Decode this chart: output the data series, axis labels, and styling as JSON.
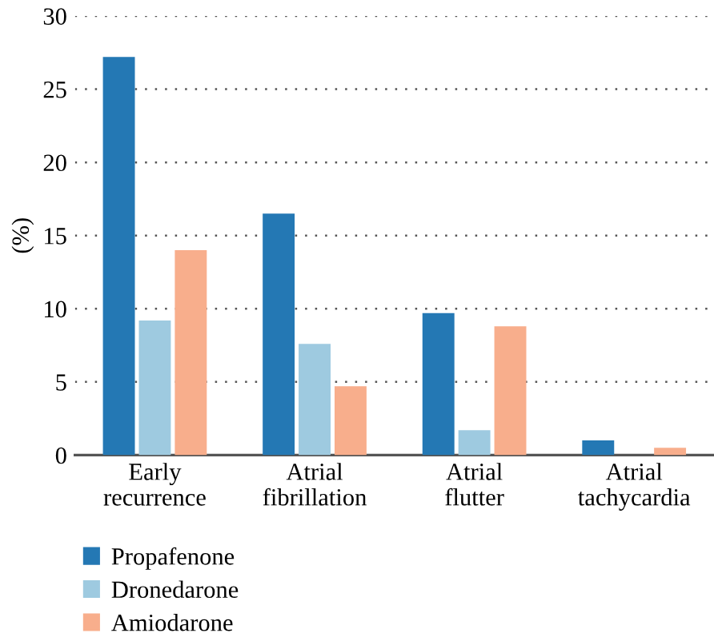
{
  "chart_data": {
    "type": "bar",
    "ylabel": "(%)",
    "categories": [
      "Early\nrecurrence",
      "Atrial\nfibrillation",
      "Atrial\nflutter",
      "Atrial\ntachycardia"
    ],
    "series": [
      {
        "name": "Propafenone",
        "color": "#2478b4",
        "values": [
          27.2,
          16.5,
          9.7,
          1.0
        ]
      },
      {
        "name": "Dronedarone",
        "color": "#9ecae0",
        "values": [
          9.2,
          7.6,
          1.7,
          0
        ]
      },
      {
        "name": "Amiodarone",
        "color": "#f8ae8c",
        "values": [
          14.0,
          4.7,
          8.8,
          0.5
        ]
      }
    ],
    "ylim": [
      0,
      30
    ],
    "yticks": [
      0,
      5,
      10,
      15,
      20,
      25,
      30
    ],
    "grid": "y",
    "legend": "bottom left"
  }
}
